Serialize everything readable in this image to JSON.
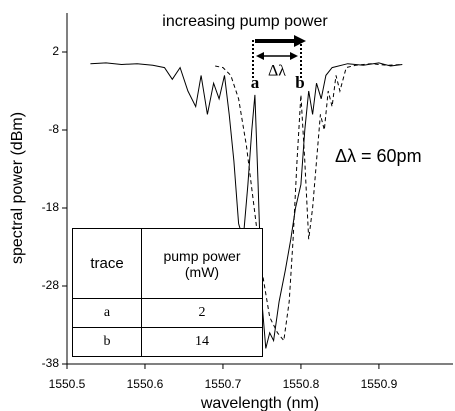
{
  "chart_data": {
    "type": "line",
    "xlabel": "wavelength (nm)",
    "ylabel": "spectral power (dBm)",
    "xlim": [
      1550.5,
      1550.995
    ],
    "ylim": [
      -38,
      7
    ],
    "xticks": [
      1550.5,
      1550.6,
      1550.7,
      1550.8,
      1550.9
    ],
    "yticks": [
      2,
      -8,
      -18,
      -28,
      -38
    ],
    "series": [
      {
        "name": "a",
        "color": "#000000",
        "dash": false,
        "x": [
          1550.53,
          1550.55,
          1550.57,
          1550.59,
          1550.61,
          1550.625,
          1550.635,
          1550.645,
          1550.655,
          1550.665,
          1550.672,
          1550.68,
          1550.688,
          1550.695,
          1550.702,
          1550.708,
          1550.714,
          1550.72,
          1550.726,
          1550.732,
          1550.737,
          1550.741,
          1550.745,
          1550.75,
          1550.755,
          1550.76,
          1550.765,
          1550.772,
          1550.78,
          1550.787,
          1550.793,
          1550.8,
          1550.805,
          1550.81,
          1550.815,
          1550.82,
          1550.826,
          1550.832,
          1550.84,
          1550.86,
          1550.88,
          1550.9,
          1550.915,
          1550.93
        ],
        "values": [
          0.5,
          0.6,
          0.4,
          0.5,
          0.3,
          0,
          -1.5,
          0,
          -3,
          -5,
          -1,
          -6,
          -2,
          -4,
          -1,
          -6,
          -12,
          -20,
          -22,
          -15,
          -8,
          -3.5,
          -15,
          -30,
          -36,
          -34,
          -35,
          -30,
          -26,
          -22,
          -18,
          -15,
          -8,
          -3,
          -6,
          -2,
          -4,
          -1,
          0,
          0.5,
          0.3,
          0.6,
          0.2,
          0.4
        ]
      },
      {
        "name": "b",
        "color": "#000000",
        "dash": true,
        "x": [
          1550.69,
          1550.7,
          1550.71,
          1550.72,
          1550.73,
          1550.74,
          1550.75,
          1550.76,
          1550.77,
          1550.778,
          1550.785,
          1550.79,
          1550.795,
          1550.8,
          1550.805,
          1550.81,
          1550.815,
          1550.82,
          1550.825,
          1550.83,
          1550.835,
          1550.84,
          1550.845,
          1550.85,
          1550.858,
          1550.87,
          1550.89,
          1550.91,
          1550.93
        ],
        "values": [
          0.2,
          0,
          -1,
          -4,
          -10,
          -18,
          -26,
          -32,
          -34,
          -35,
          -30,
          -22,
          -12,
          -3.5,
          -12,
          -22,
          -18,
          -12,
          -6,
          -8,
          -3,
          -5,
          -1,
          -3,
          0,
          0.3,
          0.5,
          0.3,
          0.4
        ]
      }
    ],
    "annotations": [
      "increasing pump power",
      "Δλ",
      "Δλ = 60pm"
    ],
    "table": {
      "header": [
        "trace",
        "pump power (mW)"
      ],
      "rows": [
        [
          "a",
          2
        ],
        [
          "b",
          14
        ]
      ]
    }
  }
}
